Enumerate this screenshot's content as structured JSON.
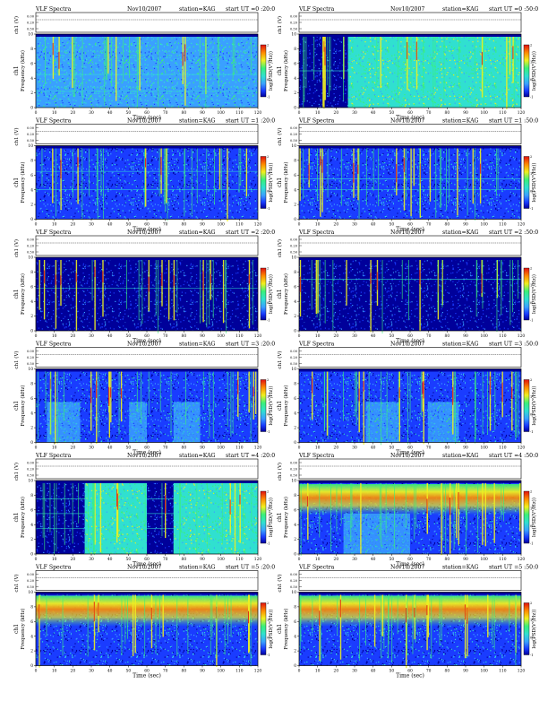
{
  "labels": {
    "heading": "VLF Spectra",
    "date": "Nov10/2007",
    "station": "station=KAG",
    "start_prefix": "start  UT =",
    "time_axis": "Time  (sec)",
    "freq_axis": "Frequency  (kHz)",
    "channel": "ch1",
    "volt_axis": "ch1 (V)",
    "cbar": "log(PSD(V²/Hz))"
  },
  "colors": {
    "deep": "#00009a",
    "blue": "#1a3cff",
    "light": "#3aa0ff",
    "cyan": "#30e0d0",
    "green": "#3af07a",
    "yellow": "#f0f020",
    "orange": "#ff8a00",
    "red": "#e01010"
  },
  "chart_data": [
    {
      "type": "heatmap",
      "start": "0 :20:0",
      "x_ticks": [
        0,
        10,
        20,
        30,
        40,
        50,
        60,
        70,
        80,
        90,
        100,
        110,
        120
      ],
      "xlim": [
        0,
        120
      ],
      "y_ticks": [
        0,
        2,
        4,
        6,
        8,
        10
      ],
      "ylim": [
        0,
        10
      ],
      "volt_ticks": [
        "0.00",
        "0.20",
        "0.50"
      ],
      "cbar_ticks": [
        "2",
        "1",
        "0",
        "-1"
      ]
    },
    {
      "type": "heatmap",
      "start": "0 :50:0",
      "x_ticks": [
        0,
        10,
        20,
        30,
        40,
        50,
        60,
        70,
        80,
        90,
        100,
        110,
        120
      ],
      "xlim": [
        0,
        120
      ],
      "y_ticks": [
        0,
        2,
        4,
        6,
        8,
        10
      ],
      "ylim": [
        0,
        10
      ],
      "volt_ticks": [
        "0.00",
        "0.20",
        "0.50"
      ],
      "cbar_ticks": [
        "2",
        "1",
        "0",
        "-1"
      ]
    },
    {
      "type": "heatmap",
      "start": "1 :20:0",
      "x_ticks": [
        0,
        10,
        20,
        30,
        40,
        50,
        60,
        70,
        80,
        90,
        100,
        110,
        120
      ],
      "xlim": [
        0,
        120
      ],
      "y_ticks": [
        0,
        2,
        4,
        6,
        8,
        10
      ],
      "ylim": [
        0,
        10
      ],
      "volt_ticks": [
        "0.00",
        "0.20",
        "0.50"
      ],
      "cbar_ticks": [
        "2",
        "1",
        "0",
        "-1"
      ]
    },
    {
      "type": "heatmap",
      "start": "1 :50:0",
      "x_ticks": [
        0,
        10,
        20,
        30,
        40,
        50,
        60,
        70,
        80,
        90,
        100,
        110,
        120
      ],
      "xlim": [
        0,
        120
      ],
      "y_ticks": [
        0,
        2,
        4,
        6,
        8,
        10
      ],
      "ylim": [
        0,
        10
      ],
      "volt_ticks": [
        "0.00",
        "0.20",
        "0.50"
      ],
      "cbar_ticks": [
        "2",
        "1",
        "0",
        "-1"
      ]
    },
    {
      "type": "heatmap",
      "start": "2 :20:0",
      "x_ticks": [
        0,
        10,
        20,
        30,
        40,
        50,
        60,
        70,
        80,
        90,
        100,
        110,
        120
      ],
      "xlim": [
        0,
        120
      ],
      "y_ticks": [
        0,
        2,
        4,
        6,
        8,
        10
      ],
      "ylim": [
        0,
        10
      ],
      "volt_ticks": [
        "0.00",
        "0.20",
        "0.50"
      ],
      "cbar_ticks": [
        "2",
        "1",
        "0",
        "-1"
      ]
    },
    {
      "type": "heatmap",
      "start": "2 :50:0",
      "x_ticks": [
        0,
        10,
        20,
        30,
        40,
        50,
        60,
        70,
        80,
        90,
        100,
        110,
        120
      ],
      "xlim": [
        0,
        120
      ],
      "y_ticks": [
        0,
        2,
        4,
        6,
        8,
        10
      ],
      "ylim": [
        0,
        10
      ],
      "volt_ticks": [
        "0.00",
        "0.20",
        "0.50"
      ],
      "cbar_ticks": [
        "2",
        "1",
        "0",
        "-1"
      ]
    },
    {
      "type": "heatmap",
      "start": "3 :20:0",
      "x_ticks": [
        0,
        10,
        20,
        30,
        40,
        50,
        60,
        70,
        80,
        90,
        100,
        110,
        120
      ],
      "xlim": [
        0,
        120
      ],
      "y_ticks": [
        0,
        2,
        4,
        6,
        8,
        10
      ],
      "ylim": [
        0,
        10
      ],
      "volt_ticks": [
        "0.00",
        "0.20",
        "0.50"
      ],
      "cbar_ticks": [
        "2",
        "1",
        "0",
        "-1"
      ]
    },
    {
      "type": "heatmap",
      "start": "3 :50:0",
      "x_ticks": [
        0,
        10,
        20,
        30,
        40,
        50,
        60,
        70,
        80,
        90,
        100,
        110,
        120
      ],
      "xlim": [
        0,
        120
      ],
      "y_ticks": [
        0,
        2,
        4,
        6,
        8,
        10
      ],
      "ylim": [
        0,
        10
      ],
      "volt_ticks": [
        "0.00",
        "0.20",
        "0.50"
      ],
      "cbar_ticks": [
        "2",
        "1",
        "0",
        "-1"
      ]
    },
    {
      "type": "heatmap",
      "start": "4 :20:0",
      "x_ticks": [
        0,
        10,
        20,
        30,
        40,
        50,
        60,
        70,
        80,
        90,
        100,
        110,
        120
      ],
      "xlim": [
        0,
        120
      ],
      "y_ticks": [
        0,
        2,
        4,
        6,
        8,
        10
      ],
      "ylim": [
        0,
        10
      ],
      "volt_ticks": [
        "0.00",
        "0.20",
        "0.50"
      ],
      "cbar_ticks": [
        "2",
        "1",
        "0",
        "-1"
      ]
    },
    {
      "type": "heatmap",
      "start": "4 :50:0",
      "x_ticks": [
        0,
        10,
        20,
        30,
        40,
        50,
        60,
        70,
        80,
        90,
        100,
        110,
        120
      ],
      "xlim": [
        0,
        120
      ],
      "y_ticks": [
        0,
        2,
        4,
        6,
        8,
        10
      ],
      "ylim": [
        0,
        10
      ],
      "volt_ticks": [
        "0.00",
        "0.20",
        "0.50"
      ],
      "cbar_ticks": [
        "2",
        "1",
        "0",
        "-1"
      ]
    },
    {
      "type": "heatmap",
      "start": "5 :20:0",
      "x_ticks": [
        0,
        10,
        20,
        30,
        40,
        50,
        60,
        70,
        80,
        90,
        100,
        110,
        120
      ],
      "xlim": [
        0,
        120
      ],
      "y_ticks": [
        0,
        2,
        4,
        6,
        8,
        10
      ],
      "ylim": [
        0,
        10
      ],
      "volt_ticks": [
        "0.00",
        "0.20",
        "0.50"
      ],
      "cbar_ticks": [
        "2",
        "1",
        "0",
        "-1"
      ]
    },
    {
      "type": "heatmap",
      "start": "5 :50:0",
      "x_ticks": [
        0,
        10,
        20,
        30,
        40,
        50,
        60,
        70,
        80,
        90,
        100,
        110,
        120
      ],
      "xlim": [
        0,
        120
      ],
      "y_ticks": [
        0,
        2,
        4,
        6,
        8,
        10
      ],
      "ylim": [
        0,
        10
      ],
      "volt_ticks": [
        "0.00",
        "0.20",
        "0.50"
      ],
      "cbar_ticks": [
        "2",
        "1",
        "0",
        "-1"
      ]
    }
  ]
}
